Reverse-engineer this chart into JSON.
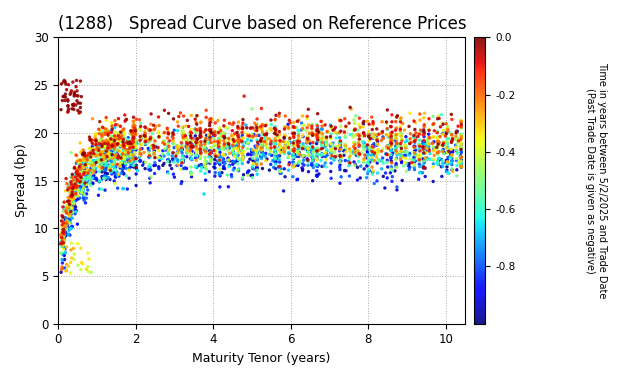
{
  "title": "(1288)   Spread Curve based on Reference Prices",
  "xlabel": "Maturity Tenor (years)",
  "ylabel": "Spread (bp)",
  "xlim": [
    0,
    10.5
  ],
  "ylim": [
    0,
    30
  ],
  "xticks": [
    0,
    2,
    4,
    6,
    8,
    10
  ],
  "yticks": [
    0,
    5,
    10,
    15,
    20,
    25,
    30
  ],
  "colorbar_label": "Time in years between 5/2/2025 and Trade Date\n(Past Trade Date is given as negative)",
  "colorbar_ticks": [
    0.0,
    -0.2,
    -0.4,
    -0.6,
    -0.8
  ],
  "cmap": "jet",
  "color_vmin": -1.0,
  "color_vmax": 0.0,
  "background_color": "#ffffff",
  "grid_color": "#aaaaaa",
  "title_fontsize": 12,
  "axis_fontsize": 9,
  "marker_size": 6
}
